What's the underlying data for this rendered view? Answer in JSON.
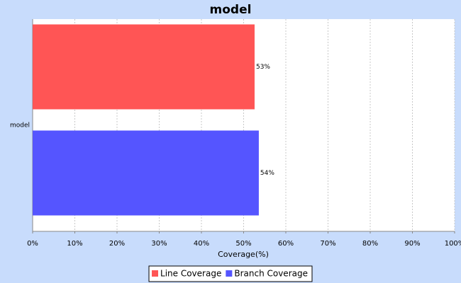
{
  "chart_data": {
    "type": "bar",
    "orientation": "horizontal",
    "title": "model",
    "categories": [
      "model"
    ],
    "series": [
      {
        "name": "Line Coverage",
        "color": "#ff5555",
        "values": [
          52.6
        ],
        "value_labels": [
          "53%"
        ]
      },
      {
        "name": "Branch Coverage",
        "color": "#5555ff",
        "values": [
          53.6
        ],
        "value_labels": [
          "54%"
        ]
      }
    ],
    "x_label": "Coverage(%)",
    "xlim": [
      0,
      100
    ],
    "xticks": [
      {
        "value": 0,
        "label": "0%"
      },
      {
        "value": 10,
        "label": "10%"
      },
      {
        "value": 20,
        "label": "20%"
      },
      {
        "value": 30,
        "label": "30%"
      },
      {
        "value": 40,
        "label": "40%"
      },
      {
        "value": 50,
        "label": "50%"
      },
      {
        "value": 60,
        "label": "60%"
      },
      {
        "value": 70,
        "label": "70%"
      },
      {
        "value": 80,
        "label": "80%"
      },
      {
        "value": 90,
        "label": "90%"
      },
      {
        "value": 100,
        "label": "100%"
      }
    ],
    "grid": true,
    "legend": "bottom"
  }
}
